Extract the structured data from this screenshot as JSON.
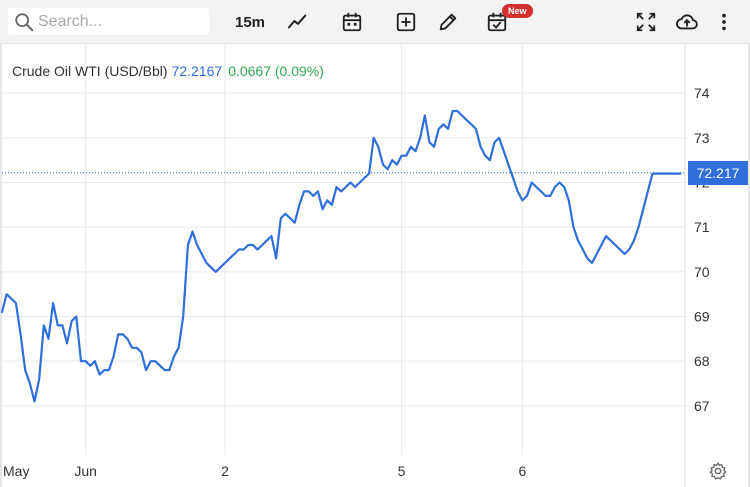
{
  "toolbar": {
    "search_placeholder": "Search...",
    "interval_label": "15m",
    "new_badge": "New",
    "icons": [
      "search-icon",
      "line-chart-icon",
      "calendar-icon",
      "add-icon",
      "pencil-icon",
      "calendar-check-icon",
      "fullscreen-icon",
      "cloud-upload-icon",
      "more-vertical-icon"
    ]
  },
  "legend": {
    "name": "Crude Oil WTI (USD/Bbl)",
    "last": "72.2167",
    "change": "0.0667 (0.09%)"
  },
  "price_tag": "72.217",
  "colors": {
    "line": "#2f6fdb",
    "up": "#34a853",
    "grid": "#e9e9e9",
    "tag": "#2f6fdb"
  },
  "chart_data": {
    "type": "line",
    "title": "Crude Oil WTI (USD/Bbl)",
    "xlabel": "",
    "ylabel": "",
    "ylim": [
      65.9,
      75.1
    ],
    "y_ticks": [
      67,
      68,
      69,
      70,
      71,
      72,
      73,
      74
    ],
    "x_tick_labels": [
      "May",
      "Jun",
      "2",
      "5",
      "6"
    ],
    "x_tick_positions": [
      0,
      18,
      48,
      86,
      112
    ],
    "x_range": [
      0,
      147
    ],
    "last_price_line": 72.217,
    "grid": true,
    "series": [
      {
        "name": "",
        "x": [
          0,
          1,
          2,
          3,
          4,
          5,
          6,
          7,
          8,
          9,
          10,
          11,
          12,
          13,
          14,
          15,
          16,
          17,
          18,
          19,
          20,
          21,
          22,
          23,
          24,
          25,
          26,
          27,
          28,
          29,
          30,
          31,
          32,
          33,
          34,
          35,
          36,
          37,
          38,
          39,
          40,
          41,
          42,
          43,
          44,
          45,
          46,
          47,
          48,
          49,
          50,
          51,
          52,
          53,
          54,
          55,
          56,
          57,
          58,
          59,
          60,
          61,
          62,
          63,
          64,
          65,
          66,
          67,
          68,
          69,
          70,
          71,
          72,
          73,
          74,
          75,
          76,
          77,
          78,
          79,
          80,
          81,
          82,
          83,
          84,
          85,
          86,
          87,
          88,
          89,
          90,
          91,
          92,
          93,
          94,
          95,
          96,
          97,
          98,
          99,
          100,
          101,
          102,
          103,
          104,
          105,
          106,
          107,
          108,
          109,
          110,
          111,
          112,
          113,
          114,
          115,
          116,
          117,
          118,
          119,
          120,
          121,
          122,
          123,
          124,
          125,
          126,
          127,
          128,
          129,
          130,
          131,
          132,
          133,
          134,
          135,
          136,
          137,
          138,
          139,
          140,
          141,
          142,
          143,
          144,
          145,
          146
        ],
        "values": [
          69.1,
          69.5,
          69.4,
          69.3,
          68.6,
          67.8,
          67.5,
          67.1,
          67.6,
          68.8,
          68.5,
          69.3,
          68.8,
          68.8,
          68.4,
          68.9,
          69.0,
          68.0,
          68.0,
          67.9,
          68.0,
          67.7,
          67.8,
          67.8,
          68.1,
          68.6,
          68.6,
          68.5,
          68.3,
          68.3,
          68.2,
          67.8,
          68.0,
          68.0,
          67.9,
          67.8,
          67.8,
          68.1,
          68.3,
          69.0,
          70.6,
          70.9,
          70.6,
          70.4,
          70.2,
          70.1,
          70.0,
          70.1,
          70.2,
          70.3,
          70.4,
          70.5,
          70.5,
          70.6,
          70.6,
          70.5,
          70.6,
          70.7,
          70.8,
          70.3,
          71.2,
          71.3,
          71.2,
          71.1,
          71.5,
          71.8,
          71.8,
          71.7,
          71.8,
          71.4,
          71.6,
          71.5,
          71.9,
          71.8,
          71.9,
          72.0,
          71.9,
          72.0,
          72.1,
          72.2,
          73.0,
          72.8,
          72.4,
          72.3,
          72.5,
          72.4,
          72.6,
          72.6,
          72.8,
          72.7,
          73.0,
          73.5,
          72.9,
          72.8,
          73.2,
          73.3,
          73.2,
          73.6,
          73.6,
          73.5,
          73.4,
          73.3,
          73.2,
          72.8,
          72.6,
          72.5,
          72.9,
          73.0,
          72.7,
          72.4,
          72.1,
          71.8,
          71.6,
          71.7,
          72.0,
          71.9,
          71.8,
          71.7,
          71.7,
          71.9,
          72.0,
          71.9,
          71.6,
          71.0,
          70.7,
          70.5,
          70.3,
          70.2,
          70.4,
          70.6,
          70.8,
          70.7,
          70.6,
          70.5,
          70.4,
          70.5,
          70.7,
          71.0,
          71.4,
          71.8,
          72.2,
          72.2,
          72.2,
          72.2,
          72.2,
          72.2,
          72.2
        ]
      }
    ]
  }
}
